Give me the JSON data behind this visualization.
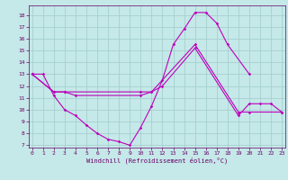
{
  "xlabel": "Windchill (Refroidissement éolien,°C)",
  "bg_color": "#c5e8e8",
  "grid_color": "#a0cccc",
  "line_color": "#bb00bb",
  "spine_color": "#660066",
  "tick_color": "#660066",
  "xlim": [
    -0.3,
    23.3
  ],
  "ylim": [
    6.8,
    18.8
  ],
  "yticks": [
    7,
    8,
    9,
    10,
    11,
    12,
    13,
    14,
    15,
    16,
    17,
    18
  ],
  "xticks": [
    0,
    1,
    2,
    3,
    4,
    5,
    6,
    7,
    8,
    9,
    10,
    11,
    12,
    13,
    14,
    15,
    16,
    17,
    18,
    19,
    20,
    21,
    22,
    23
  ],
  "curve1_x": [
    0,
    1,
    2,
    3,
    4,
    5,
    6,
    7,
    8,
    9,
    10,
    11,
    12,
    13,
    14,
    15,
    16,
    17,
    18,
    20
  ],
  "curve1_y": [
    13,
    13,
    11.2,
    10.0,
    9.5,
    8.7,
    8.0,
    7.5,
    7.3,
    7.0,
    8.5,
    10.3,
    12.5,
    15.5,
    16.8,
    18.2,
    18.2,
    17.3,
    15.5,
    13.0
  ],
  "curve2_x": [
    0,
    2,
    3,
    4,
    10,
    11,
    15,
    19,
    20,
    23
  ],
  "curve2_y": [
    13,
    11.5,
    11.5,
    11.2,
    11.2,
    11.5,
    15.5,
    9.8,
    9.8,
    9.8
  ],
  "curve3_x": [
    0,
    2,
    3,
    10,
    11,
    12,
    15,
    19,
    20,
    21,
    22,
    23
  ],
  "curve3_y": [
    13,
    11.5,
    11.5,
    11.5,
    11.5,
    12.0,
    15.2,
    9.5,
    10.5,
    10.5,
    10.5,
    9.8
  ]
}
